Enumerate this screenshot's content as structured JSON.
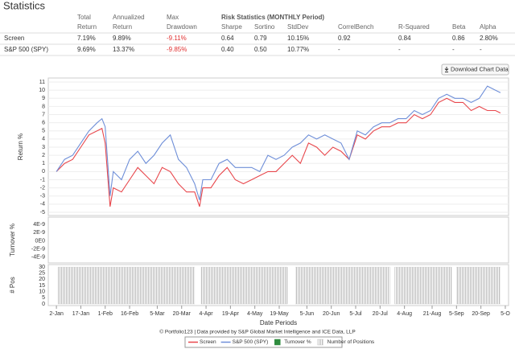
{
  "header": "Statistics",
  "button": "Download Chart Data",
  "table": {
    "header_top": [
      "Total",
      "Annualized",
      "Max"
    ],
    "group_header": "Risk Statistics (MONTHLY Period)",
    "header": [
      "Return",
      "Return",
      "Drawdown",
      "Sharpe",
      "Sortino",
      "StdDev",
      "CorrelBench",
      "R-Squared",
      "Beta",
      "Alpha"
    ],
    "rows": [
      [
        "Screen",
        "7.19%",
        "9.89%",
        "-9.11%",
        "0.64",
        "0.79",
        "10.15%",
        "0.92",
        "0.84",
        "0.86",
        "2.80%"
      ],
      [
        "S&P 500 (SPY)",
        "9.69%",
        "13.37%",
        "-9.85%",
        "0.40",
        "0.50",
        "10.77%",
        "-",
        "-",
        "-",
        "-"
      ]
    ]
  },
  "chart_data": [
    {
      "type": "line",
      "ylabel": "Return %",
      "xlim": [
        -5,
        278
      ],
      "ylim": [
        -5.4,
        11.5
      ],
      "yticks": [
        -5,
        -4,
        -3,
        -2,
        -1,
        0,
        1,
        2,
        3,
        4,
        5,
        6,
        7,
        8,
        9,
        10,
        11
      ],
      "grid": true,
      "x": [
        0,
        5,
        10,
        15,
        20,
        25,
        28,
        30,
        33,
        35,
        40,
        45,
        50,
        55,
        60,
        65,
        70,
        75,
        80,
        85,
        88,
        90,
        95,
        100,
        105,
        110,
        115,
        120,
        125,
        130,
        135,
        140,
        145,
        150,
        155,
        160,
        165,
        170,
        175,
        180,
        185,
        190,
        195,
        200,
        205,
        210,
        215,
        220,
        225,
        230,
        235,
        240,
        245,
        250,
        255,
        260,
        265,
        270,
        273
      ],
      "series": [
        {
          "name": "Screen",
          "color": "#e8474c",
          "values": [
            0,
            1.0,
            1.5,
            3,
            4.5,
            5,
            5.3,
            3.5,
            -4.3,
            -2,
            -2.5,
            -1,
            0.5,
            -0.5,
            -1.5,
            0.5,
            0,
            -1.5,
            -2.5,
            -2.5,
            -4.3,
            -2,
            -2,
            -0.5,
            0.5,
            -1,
            -1.5,
            -1,
            -0.5,
            0,
            0,
            1,
            2,
            1,
            3.5,
            3,
            2,
            3,
            2.5,
            1.5,
            4.5,
            4,
            5,
            5.5,
            5.5,
            6,
            6,
            7,
            6.5,
            7,
            8.5,
            9,
            8.5,
            8.5,
            7.5,
            8,
            7.5,
            7.5,
            7.2
          ]
        },
        {
          "name": "S&P 500 (SPY)",
          "color": "#6f8fd8",
          "values": [
            0,
            1.5,
            2,
            3.5,
            5,
            6,
            6.5,
            5.5,
            -3,
            0,
            -1,
            1.5,
            2.5,
            1,
            2,
            3.5,
            4.5,
            1.5,
            0.5,
            -1.5,
            -3.5,
            -1,
            -1,
            1,
            1.5,
            0.5,
            0.5,
            0.5,
            0,
            2,
            1.5,
            2,
            3,
            3.5,
            4.5,
            4,
            4.5,
            4,
            3.5,
            1.5,
            5,
            4.5,
            5.5,
            6,
            6,
            6.5,
            6.5,
            7.5,
            7,
            7.5,
            9,
            9.5,
            9,
            9,
            8.5,
            9,
            10.5,
            10,
            9.7
          ]
        }
      ]
    },
    {
      "type": "bar",
      "ylabel": "Turnover %",
      "ylim": [
        -5.4e-09,
        5.8e-09
      ],
      "yticks": [
        {
          "value": 4e-09,
          "label": "4E-9"
        },
        {
          "value": 2e-09,
          "label": "2E-9"
        },
        {
          "value": 0,
          "label": "0E0"
        },
        {
          "value": -2e-09,
          "label": "-2E-9"
        },
        {
          "value": -4e-09,
          "label": "-4E-9"
        }
      ],
      "series": [
        {
          "name": "Turnover %",
          "color": "#2e8b3e"
        }
      ]
    },
    {
      "type": "bar",
      "ylabel": "# Pos",
      "xlabel": "Date Periods",
      "xlim": [
        -5,
        278
      ],
      "ylim": [
        -1.3,
        32
      ],
      "yticks": [
        0,
        5,
        10,
        15,
        20,
        25,
        30
      ],
      "xticks": [
        {
          "value": 0,
          "label": "2-Jan"
        },
        {
          "value": 15,
          "label": "17-Jan"
        },
        {
          "value": 30,
          "label": "1-Feb"
        },
        {
          "value": 45,
          "label": "16-Feb"
        },
        {
          "value": 62,
          "label": "5-Mar"
        },
        {
          "value": 77,
          "label": "20-Mar"
        },
        {
          "value": 92,
          "label": "4-Apr"
        },
        {
          "value": 107,
          "label": "19-Apr"
        },
        {
          "value": 122,
          "label": "4-May"
        },
        {
          "value": 137,
          "label": "19-May"
        },
        {
          "value": 154,
          "label": "5-Jun"
        },
        {
          "value": 169,
          "label": "20-Jun"
        },
        {
          "value": 184,
          "label": "5-Jul"
        },
        {
          "value": 199,
          "label": "20-Jul"
        },
        {
          "value": 214,
          "label": "4-Aug"
        },
        {
          "value": 231,
          "label": "21-Aug"
        },
        {
          "value": 246,
          "label": "5-Sep"
        },
        {
          "value": 261,
          "label": "20-Sep"
        },
        {
          "value": 276,
          "label": "5-O"
        }
      ],
      "series": [
        {
          "name": "Number of Positions",
          "color": "#c4c4c4",
          "starts": [
            1,
            89,
            147,
            208,
            246
          ],
          "ends": [
            85,
            142,
            205,
            243,
            273
          ],
          "values": [
            30,
            30,
            30,
            30,
            30
          ]
        }
      ]
    }
  ],
  "footer": "© Portfolio123 | Data provided by S&P Global Market Intelligence and ICE Data, LLP"
}
